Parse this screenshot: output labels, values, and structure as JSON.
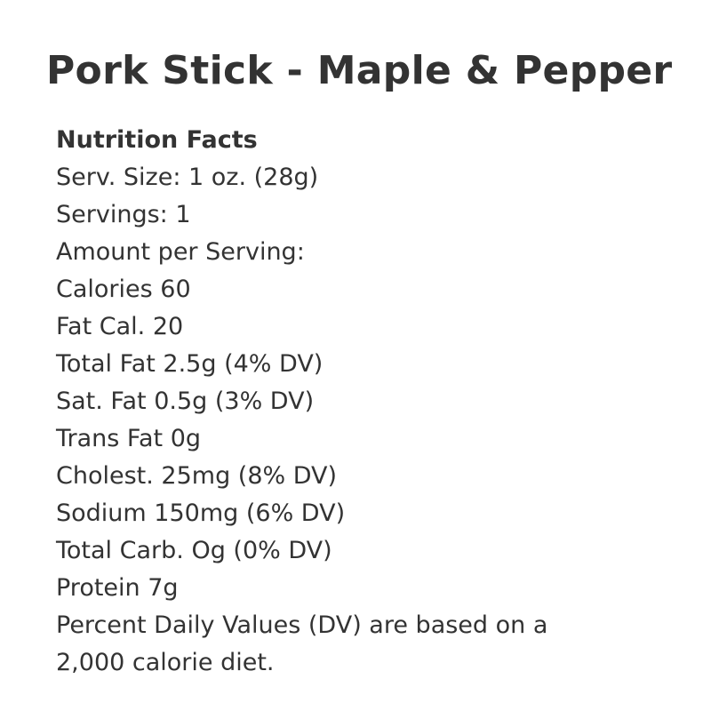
{
  "title": "Pork Stick - Maple & Pepper",
  "nutrition": {
    "heading": "Nutrition Facts",
    "lines": [
      "Serv. Size: 1 oz. (28g)",
      "Servings: 1",
      "Amount per Serving:",
      "Calories 60",
      "Fat Cal. 20",
      "Total Fat 2.5g (4% DV)",
      "Sat. Fat 0.5g (3% DV)",
      "Trans Fat 0g",
      "Cholest. 25mg (8% DV)",
      "Sodium 150mg (6% DV)",
      "Total Carb. Og (0% DV)",
      "Protein 7g",
      "Percent Daily Values (DV) are based on a",
      "2,000 calorie diet."
    ]
  }
}
